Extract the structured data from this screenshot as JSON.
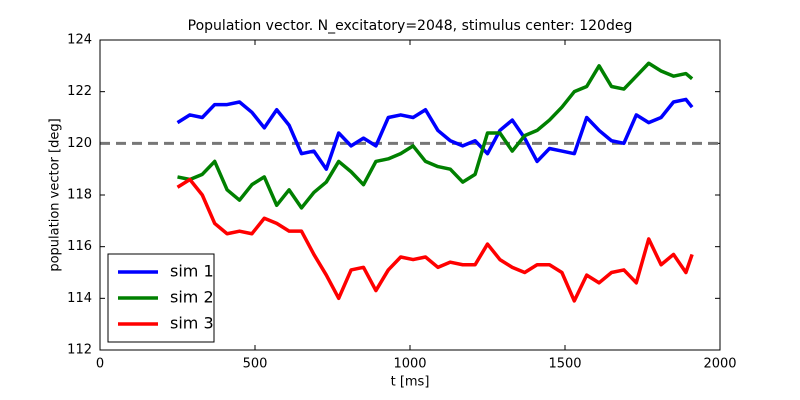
{
  "chart_data": {
    "type": "line",
    "title": "Population vector. N_excitatory=2048, stimulus center: 120deg",
    "xlabel": "t [ms]",
    "ylabel": "population vector [deg]",
    "x": [
      250,
      290,
      330,
      370,
      410,
      450,
      490,
      530,
      570,
      610,
      650,
      690,
      730,
      770,
      810,
      850,
      890,
      930,
      970,
      1010,
      1050,
      1090,
      1130,
      1170,
      1210,
      1250,
      1290,
      1330,
      1370,
      1410,
      1450,
      1490,
      1530,
      1570,
      1610,
      1650,
      1690,
      1730,
      1770,
      1810,
      1850,
      1890,
      1910
    ],
    "series": [
      {
        "name": "sim 1",
        "color": "#0000ff",
        "values": [
          120.8,
          121.1,
          121.0,
          121.5,
          121.5,
          121.6,
          121.2,
          120.6,
          121.3,
          120.7,
          119.6,
          119.7,
          119.0,
          120.4,
          119.9,
          120.2,
          119.9,
          121.0,
          121.1,
          121.0,
          121.3,
          120.5,
          120.1,
          119.9,
          120.1,
          119.6,
          120.5,
          120.9,
          120.2,
          119.3,
          119.8,
          119.7,
          119.6,
          121.0,
          120.5,
          120.1,
          120.0,
          121.1,
          120.8,
          121.0,
          121.6,
          121.7,
          121.4
        ]
      },
      {
        "name": "sim 2",
        "color": "#008000",
        "values": [
          118.7,
          118.6,
          118.8,
          119.3,
          118.2,
          117.8,
          118.4,
          118.7,
          117.6,
          118.2,
          117.5,
          118.1,
          118.5,
          119.3,
          118.9,
          118.4,
          119.3,
          119.4,
          119.6,
          119.9,
          119.3,
          119.1,
          119.0,
          118.5,
          118.8,
          120.4,
          120.4,
          119.7,
          120.3,
          120.5,
          120.9,
          121.4,
          122.0,
          122.2,
          123.0,
          122.2,
          122.1,
          122.6,
          123.1,
          122.8,
          122.6,
          122.7,
          122.5
        ]
      },
      {
        "name": "sim 3",
        "color": "#ff0000",
        "values": [
          118.3,
          118.6,
          118.0,
          116.9,
          116.5,
          116.6,
          116.5,
          117.1,
          116.9,
          116.6,
          116.6,
          115.7,
          114.9,
          114.0,
          115.1,
          115.2,
          114.3,
          115.1,
          115.6,
          115.5,
          115.6,
          115.2,
          115.4,
          115.3,
          115.3,
          116.1,
          115.5,
          115.2,
          115.0,
          115.3,
          115.3,
          115.0,
          113.9,
          114.9,
          114.6,
          115.0,
          115.1,
          114.6,
          116.3,
          115.3,
          115.7,
          115.0,
          115.7
        ]
      }
    ],
    "hline": 120,
    "hline_color": "#777777",
    "xlim": [
      0,
      2000
    ],
    "xticks": [
      0,
      500,
      1000,
      1500,
      2000
    ],
    "ylim": [
      112,
      124
    ],
    "yticks": [
      112,
      114,
      116,
      118,
      120,
      122,
      124
    ],
    "legend": "lower left"
  }
}
